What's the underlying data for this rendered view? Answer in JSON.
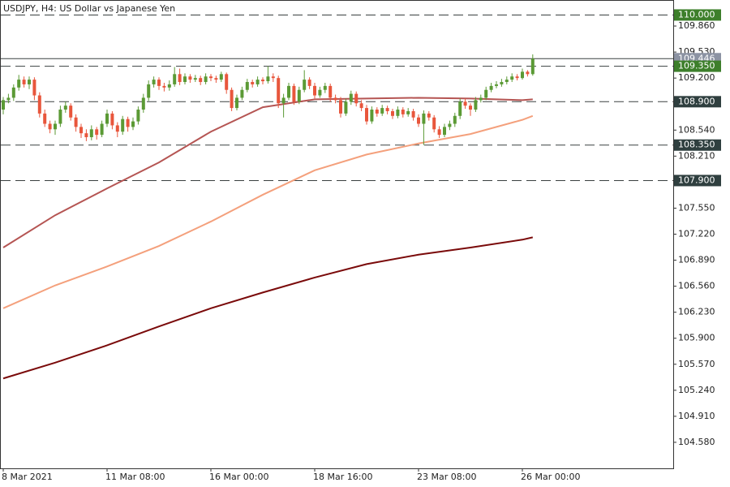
{
  "chart_data": {
    "type": "candlestick",
    "title": "USDJPY, H4:  US Dollar vs Japanese Yen",
    "categories": [
      "8 Mar 2021",
      null,
      null,
      null,
      null,
      null,
      null,
      null,
      null,
      null,
      null,
      null,
      null,
      null,
      null,
      null,
      null,
      null,
      null,
      null,
      "11 Mar 08:00",
      null,
      null,
      null,
      null,
      null,
      null,
      null,
      null,
      null,
      null,
      null,
      null,
      null,
      null,
      null,
      null,
      null,
      null,
      null,
      "16 Mar 00:00",
      null,
      null,
      null,
      null,
      null,
      null,
      null,
      null,
      null,
      null,
      null,
      null,
      null,
      null,
      null,
      null,
      null,
      null,
      null,
      "18 Mar 16:00",
      null,
      null,
      null,
      null,
      null,
      null,
      null,
      null,
      null,
      null,
      null,
      null,
      null,
      null,
      null,
      null,
      null,
      null,
      null,
      "23 Mar 08:00",
      null,
      null,
      null,
      null,
      null,
      null,
      null,
      null,
      null,
      null,
      null,
      null,
      null,
      null,
      null,
      null,
      null,
      null,
      null,
      "26 Mar 00:00",
      null,
      null
    ],
    "open": [
      108.8,
      108.92,
      108.95,
      109.08,
      109.18,
      109.12,
      109.18,
      108.98,
      108.75,
      108.62,
      108.55,
      108.62,
      108.8,
      108.85,
      108.7,
      108.58,
      108.5,
      108.45,
      108.55,
      108.48,
      108.62,
      108.75,
      108.6,
      108.52,
      108.68,
      108.58,
      108.65,
      108.8,
      108.95,
      109.12,
      109.18,
      109.1,
      109.08,
      109.12,
      109.25,
      109.15,
      109.22,
      109.18,
      109.2,
      109.15,
      109.22,
      109.2,
      109.18,
      109.25,
      109.05,
      108.82,
      108.95,
      109.05,
      109.15,
      109.12,
      109.18,
      109.16,
      109.22,
      109.2,
      108.88,
      108.95,
      109.1,
      108.9,
      109.05,
      109.18,
      109.1,
      108.98,
      109.05,
      109.1,
      108.95,
      108.92,
      108.75,
      108.9,
      109.0,
      108.88,
      108.82,
      108.65,
      108.8,
      108.75,
      108.82,
      108.78,
      108.72,
      108.8,
      108.74,
      108.78,
      108.7,
      108.62,
      108.75,
      108.7,
      108.55,
      108.48,
      108.58,
      108.62,
      108.72,
      108.9,
      108.85,
      108.8,
      108.92,
      108.95,
      109.05,
      109.1,
      109.12,
      109.15,
      109.18,
      109.22,
      109.2,
      109.28,
      109.25
    ],
    "high": [
      108.96,
      109.0,
      109.12,
      109.24,
      109.22,
      109.22,
      109.21,
      109.02,
      108.8,
      108.66,
      108.66,
      108.85,
      108.9,
      108.88,
      108.74,
      108.62,
      108.55,
      108.6,
      108.58,
      108.66,
      108.8,
      108.78,
      108.64,
      108.72,
      108.71,
      108.7,
      108.84,
      109.0,
      109.17,
      109.22,
      109.21,
      109.14,
      109.17,
      109.34,
      109.32,
      109.26,
      109.25,
      109.24,
      109.23,
      109.26,
      109.25,
      109.23,
      109.28,
      109.27,
      109.08,
      108.99,
      109.09,
      109.19,
      109.18,
      109.22,
      109.21,
      109.35,
      109.26,
      109.23,
      109.0,
      109.14,
      109.13,
      109.09,
      109.3,
      109.21,
      109.14,
      109.09,
      109.14,
      109.13,
      108.99,
      108.96,
      108.94,
      109.04,
      109.03,
      108.92,
      108.86,
      108.84,
      108.83,
      108.86,
      108.85,
      108.81,
      108.84,
      108.83,
      108.82,
      108.81,
      108.74,
      108.79,
      108.78,
      108.73,
      108.59,
      108.62,
      108.66,
      108.76,
      108.94,
      108.94,
      108.88,
      108.96,
      108.99,
      109.09,
      109.14,
      109.16,
      109.19,
      109.22,
      109.26,
      109.25,
      109.32,
      109.3,
      109.5
    ],
    "low": [
      108.74,
      108.88,
      108.91,
      109.04,
      109.08,
      109.06,
      108.92,
      108.7,
      108.58,
      108.5,
      108.48,
      108.58,
      108.76,
      108.66,
      108.52,
      108.44,
      108.4,
      108.41,
      108.42,
      108.45,
      108.58,
      108.55,
      108.45,
      108.48,
      108.52,
      108.54,
      108.61,
      108.76,
      108.91,
      109.08,
      109.05,
      109.03,
      109.04,
      109.09,
      109.11,
      109.12,
      109.14,
      109.15,
      109.11,
      109.12,
      109.16,
      109.14,
      109.15,
      109.0,
      108.78,
      108.79,
      108.92,
      109.02,
      109.08,
      109.09,
      109.12,
      109.13,
      109.15,
      108.82,
      108.7,
      108.92,
      108.86,
      108.87,
      109.02,
      109.06,
      108.94,
      108.95,
      109.01,
      108.9,
      108.88,
      108.7,
      108.72,
      108.86,
      108.84,
      108.78,
      108.61,
      108.62,
      108.71,
      108.72,
      108.74,
      108.68,
      108.69,
      108.7,
      108.71,
      108.66,
      108.58,
      108.35,
      108.66,
      108.51,
      108.44,
      108.45,
      108.54,
      108.58,
      108.68,
      108.81,
      108.72,
      108.77,
      108.89,
      108.92,
      109.02,
      109.07,
      109.09,
      109.12,
      109.15,
      109.17,
      109.18,
      109.22,
      109.23
    ],
    "close": [
      108.92,
      108.95,
      109.08,
      109.18,
      109.12,
      109.18,
      108.98,
      108.75,
      108.62,
      108.55,
      108.62,
      108.8,
      108.85,
      108.7,
      108.58,
      108.5,
      108.45,
      108.55,
      108.48,
      108.62,
      108.75,
      108.6,
      108.52,
      108.68,
      108.58,
      108.65,
      108.8,
      108.95,
      109.12,
      109.18,
      109.1,
      109.08,
      109.12,
      109.25,
      109.15,
      109.22,
      109.18,
      109.2,
      109.15,
      109.22,
      109.2,
      109.18,
      109.25,
      109.05,
      108.82,
      108.95,
      109.05,
      109.15,
      109.12,
      109.18,
      109.16,
      109.22,
      109.2,
      108.88,
      108.95,
      109.1,
      108.9,
      109.05,
      109.18,
      109.1,
      108.98,
      109.05,
      109.1,
      108.95,
      108.92,
      108.75,
      108.9,
      109.0,
      108.88,
      108.82,
      108.65,
      108.8,
      108.75,
      108.82,
      108.78,
      108.72,
      108.8,
      108.74,
      108.78,
      108.7,
      108.62,
      108.75,
      108.7,
      108.55,
      108.48,
      108.58,
      108.62,
      108.72,
      108.9,
      108.85,
      108.8,
      108.92,
      108.95,
      109.05,
      109.1,
      109.12,
      109.15,
      109.18,
      109.22,
      109.2,
      109.28,
      109.25,
      109.446
    ],
    "up_color": "#5b9a35",
    "down_color": "#e8563c",
    "lines": [
      {
        "color": "#b55553",
        "x": [
          0,
          10,
          20,
          30,
          40,
          50,
          60,
          70,
          80,
          90,
          100,
          102
        ],
        "values": [
          107.05,
          107.46,
          107.8,
          108.13,
          108.52,
          108.83,
          108.93,
          108.94,
          108.95,
          108.94,
          108.92,
          108.93
        ]
      },
      {
        "color": "#f4a07c",
        "x": [
          0,
          10,
          20,
          30,
          40,
          50,
          60,
          70,
          80,
          90,
          100,
          102
        ],
        "values": [
          106.28,
          106.57,
          106.81,
          107.07,
          107.38,
          107.72,
          108.03,
          108.23,
          108.37,
          108.49,
          108.67,
          108.72
        ]
      },
      {
        "color": "#7a0a0a",
        "x": [
          0,
          10,
          20,
          30,
          40,
          50,
          60,
          70,
          80,
          90,
          100,
          102
        ],
        "values": [
          105.39,
          105.59,
          105.81,
          106.05,
          106.28,
          106.48,
          106.67,
          106.84,
          106.96,
          107.05,
          107.15,
          107.18
        ]
      }
    ],
    "levels": [
      {
        "price": {
          "value": 110.0,
          "label": "110.000"
        },
        "color": "#3d7f2b",
        "style": "dashed"
      },
      {
        "price": {
          "value": 109.446,
          "label": "109.446"
        },
        "color": "#8c93a3",
        "style": "solid"
      },
      {
        "price": {
          "value": 109.35,
          "label": "109.350"
        },
        "color": "#3d7f2b",
        "style": "dashed"
      },
      {
        "price": {
          "value": 108.9,
          "label": "108.900"
        },
        "color": "#2f3f3f",
        "style": "dashed"
      },
      {
        "price": {
          "value": 108.35,
          "label": "108.350"
        },
        "color": "#2f3f3f",
        "style": "dashed"
      },
      {
        "price": {
          "value": 107.9,
          "label": "107.900"
        },
        "color": "#2f3f3f",
        "style": "dashed"
      }
    ],
    "ylim": [
      104.25,
      110.19
    ],
    "yticks": [
      {
        "value": 109.86,
        "label": "109.860"
      },
      {
        "value": 109.53,
        "label": "109.530"
      },
      {
        "value": 109.2,
        "label": "109.200"
      },
      {
        "value": 108.54,
        "label": "108.540"
      },
      {
        "value": 108.21,
        "label": "108.210"
      },
      {
        "value": 107.55,
        "label": "107.550"
      },
      {
        "value": 107.22,
        "label": "107.220"
      },
      {
        "value": 106.89,
        "label": "106.890"
      },
      {
        "value": 106.56,
        "label": "106.560"
      },
      {
        "value": 106.23,
        "label": "106.230"
      },
      {
        "value": 105.9,
        "label": "105.900"
      },
      {
        "value": 105.57,
        "label": "105.570"
      },
      {
        "value": 105.24,
        "label": "105.240"
      },
      {
        "value": 104.91,
        "label": "104.910"
      },
      {
        "value": 104.58,
        "label": "104.580"
      }
    ]
  }
}
